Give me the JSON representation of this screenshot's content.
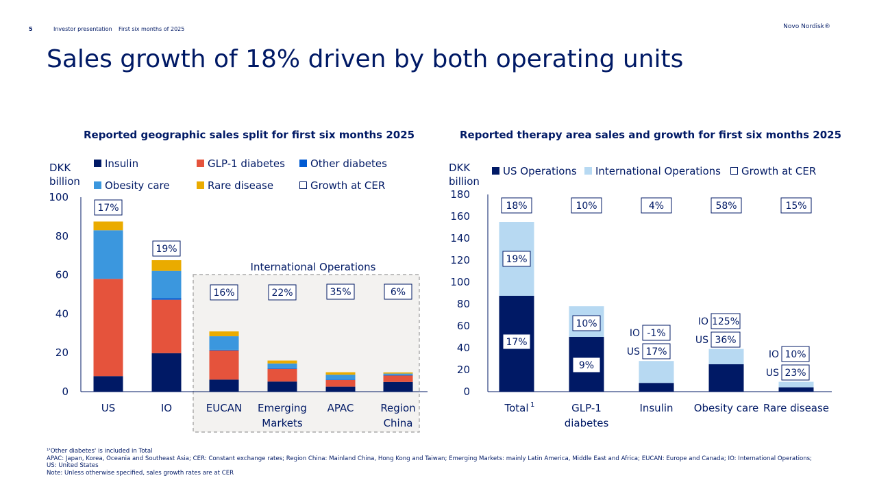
{
  "header": {
    "page_number": "5",
    "doc_title": "Investor presentation",
    "period": "First six months of 2025",
    "brand": "Novo Nordisk®"
  },
  "title": "Sales growth of 18% driven by both operating units",
  "colors": {
    "insulin": "#001965",
    "glp1": "#E5533C",
    "other_diabetes": "#005AD2",
    "obesity": "#3B97DE",
    "rare": "#EAAB00",
    "us_ops": "#001965",
    "intl_ops": "#B7D9F2",
    "text": "#001965"
  },
  "left_chart": {
    "subtitle": "Reported geographic sales split for first six months 2025",
    "ylabel_line1": "DKK",
    "ylabel_line2": "billion",
    "legend": {
      "insulin": "Insulin",
      "glp1": "GLP-1 diabetes",
      "other_diabetes": "Other diabetes",
      "obesity": "Obesity care",
      "rare": "Rare disease",
      "growth": "Growth at CER"
    },
    "io_box_label": "International Operations"
  },
  "right_chart": {
    "subtitle": "Reported therapy area sales and growth for first six months 2025",
    "ylabel_line1": "DKK",
    "ylabel_line2": "billion",
    "legend": {
      "us": "US Operations",
      "intl": "International Operations",
      "growth": "Growth at CER"
    }
  },
  "chart_data": [
    {
      "type": "bar",
      "stacked": true,
      "title": "Reported geographic sales split for first six months 2025",
      "ylabel": "DKK billion",
      "ylim": [
        0,
        100
      ],
      "yticks": [
        0,
        20,
        40,
        60,
        80,
        100
      ],
      "categories": [
        "US",
        "IO",
        "EUCAN",
        "Emerging Markets",
        "APAC",
        "Region China"
      ],
      "series": [
        {
          "name": "Insulin",
          "color": "#001965",
          "values": [
            8,
            19.8,
            6.2,
            5.2,
            2.6,
            5
          ]
        },
        {
          "name": "GLP-1 diabetes",
          "color": "#E5533C",
          "values": [
            50,
            27.5,
            15,
            6.5,
            3.4,
            3.3
          ]
        },
        {
          "name": "Other diabetes",
          "color": "#005AD2",
          "values": [
            0,
            0.8,
            0.3,
            0.3,
            0.2,
            0.2
          ]
        },
        {
          "name": "Obesity care",
          "color": "#3B97DE",
          "values": [
            25,
            14,
            7,
            2.5,
            2.5,
            0.8
          ]
        },
        {
          "name": "Rare disease",
          "color": "#EAAB00",
          "values": [
            4.5,
            5.5,
            2.5,
            1.5,
            1.3,
            0.6
          ]
        }
      ],
      "growth_labels": [
        "17%",
        "19%",
        "16%",
        "22%",
        "35%",
        "6%"
      ]
    },
    {
      "type": "bar",
      "stacked": true,
      "title": "Reported therapy area sales and growth for first six months 2025",
      "ylabel": "DKK billion",
      "ylim": [
        0,
        180
      ],
      "yticks": [
        0,
        20,
        40,
        60,
        80,
        100,
        120,
        140,
        160,
        180
      ],
      "categories": [
        "Total",
        "GLP-1 diabetes",
        "Insulin",
        "Obesity care",
        "Rare disease"
      ],
      "category_superscripts": [
        "1",
        "",
        "",
        "",
        ""
      ],
      "series": [
        {
          "name": "US Operations",
          "color": "#001965",
          "values": [
            87.5,
            50,
            8,
            25,
            4
          ]
        },
        {
          "name": "International Operations",
          "color": "#B7D9F2",
          "values": [
            67.5,
            28,
            20,
            14,
            5
          ]
        }
      ],
      "growth_total": [
        "18%",
        "10%",
        "4%",
        "58%",
        "15%"
      ],
      "growth_us": [
        "17%",
        "9%",
        "17%",
        "36%",
        "23%"
      ],
      "growth_io": [
        "19%",
        "10%",
        "-1%",
        "125%",
        "10%"
      ],
      "us_tag": "US",
      "io_tag": "IO"
    }
  ],
  "footer": {
    "line1": "¹'Other diabetes' is included in Total",
    "line2": "APAC: Japan, Korea, Oceania and Southeast Asia; CER: Constant exchange rates; Region China: Mainland China, Hong Kong and Taiwan; Emerging Markets: mainly Latin America, Middle East and Africa; EUCAN: Europe and Canada; IO: International Operations; US: United States",
    "line3": "Note: Unless otherwise specified, sales growth rates are at CER"
  }
}
